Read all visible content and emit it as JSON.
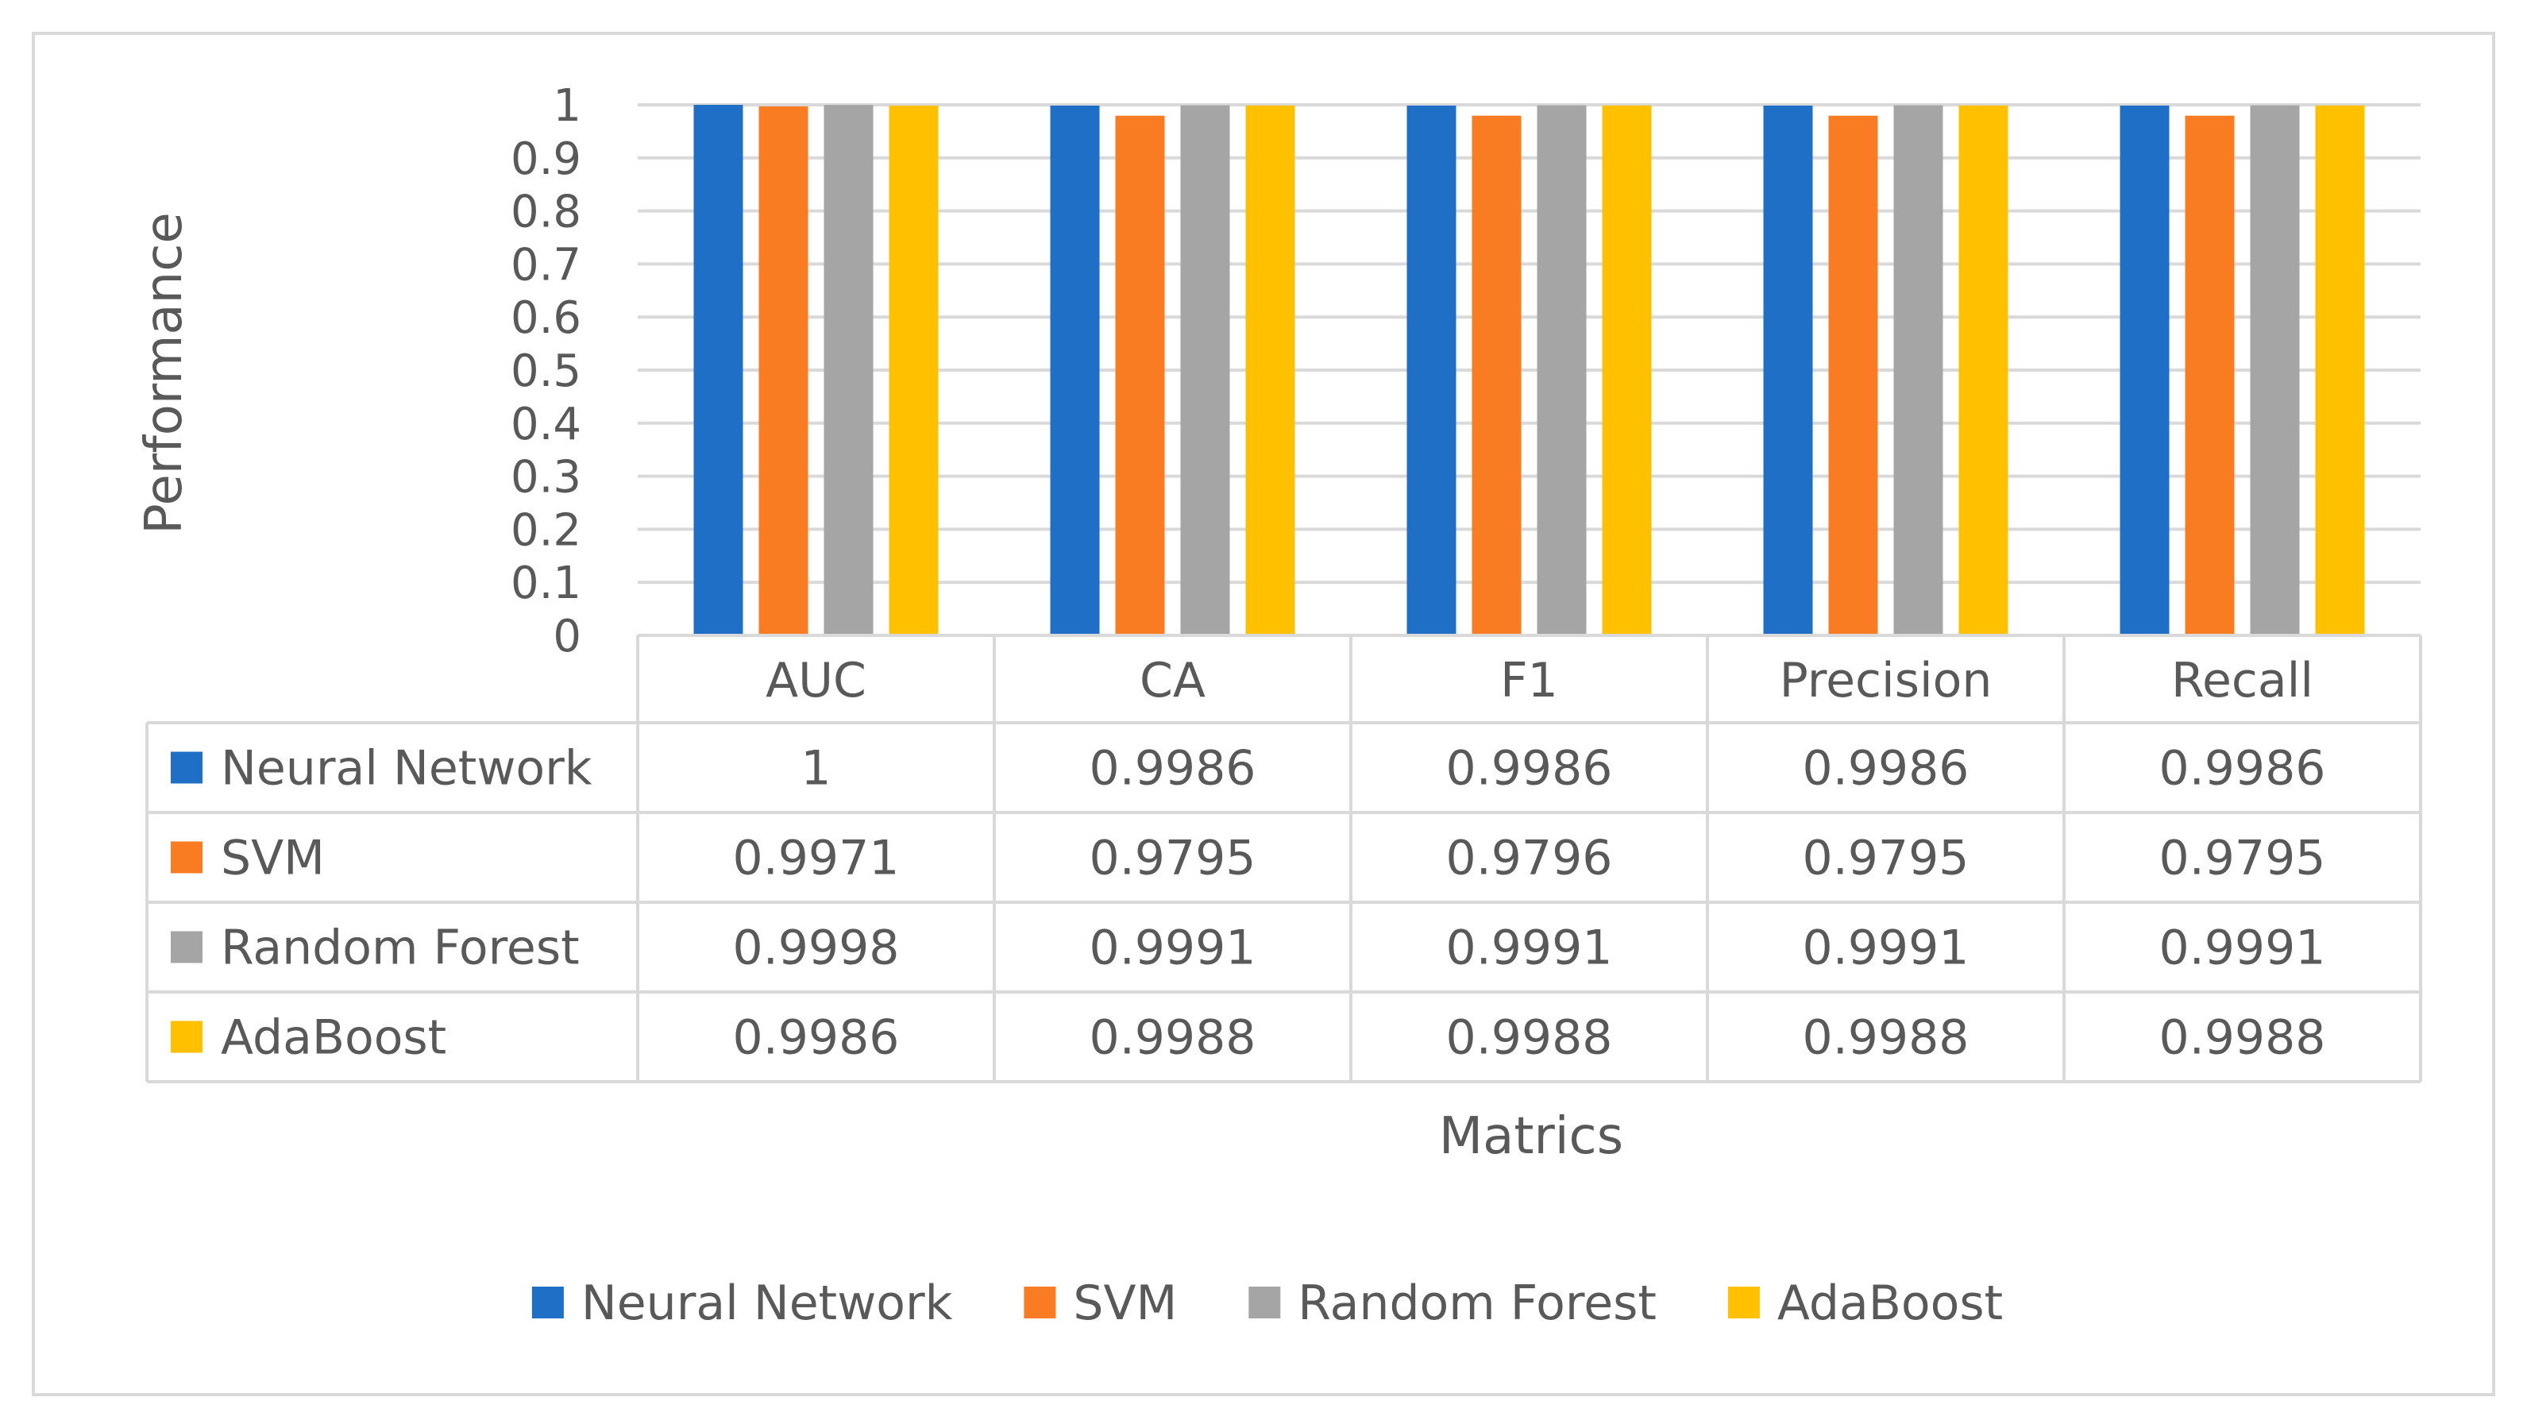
{
  "chart_data": {
    "type": "bar",
    "xlabel": "Matrics",
    "ylabel": "Performance",
    "ylim": [
      0,
      1
    ],
    "ytick_step": 0.1,
    "grid": true,
    "legend_position": "bottom",
    "categories": [
      "AUC",
      "CA",
      "F1",
      "Precision",
      "Recall"
    ],
    "series": [
      {
        "name": "Neural Network",
        "color": "#1F6FC6",
        "values": [
          1,
          0.9986,
          0.9986,
          0.9986,
          0.9986
        ]
      },
      {
        "name": "SVM",
        "color": "#F97B22",
        "values": [
          0.9971,
          0.9795,
          0.9796,
          0.9795,
          0.9795
        ]
      },
      {
        "name": "Random Forest",
        "color": "#A5A5A5",
        "values": [
          0.9998,
          0.9991,
          0.9991,
          0.9991,
          0.9991
        ]
      },
      {
        "name": "AdaBoost",
        "color": "#FFC000",
        "values": [
          0.9986,
          0.9988,
          0.9988,
          0.9988,
          0.9988
        ]
      }
    ],
    "data_table_text": [
      [
        "1",
        "0.9986",
        "0.9986",
        "0.9986",
        "0.9986"
      ],
      [
        "0.9971",
        "0.9795",
        "0.9796",
        "0.9795",
        "0.9795"
      ],
      [
        "0.9998",
        "0.9991",
        "0.9991",
        "0.9991",
        "0.9991"
      ],
      [
        "0.9986",
        "0.9988",
        "0.9988",
        "0.9988",
        "0.9988"
      ]
    ]
  }
}
